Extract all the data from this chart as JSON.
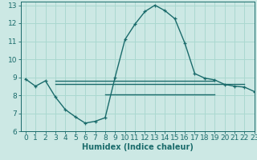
{
  "xlabel": "Humidex (Indice chaleur)",
  "background_color": "#cce8e4",
  "line_color": "#1a6b6b",
  "grid_color": "#aad8d0",
  "xlim": [
    -0.5,
    23
  ],
  "ylim": [
    6,
    13.2
  ],
  "xticks": [
    0,
    1,
    2,
    3,
    4,
    5,
    6,
    7,
    8,
    9,
    10,
    11,
    12,
    13,
    14,
    15,
    16,
    17,
    18,
    19,
    20,
    21,
    22,
    23
  ],
  "yticks": [
    6,
    7,
    8,
    9,
    10,
    11,
    12,
    13
  ],
  "main_curve_x": [
    0,
    1,
    2,
    3,
    4,
    5,
    6,
    7,
    8,
    9,
    10,
    11,
    12,
    13,
    14,
    15,
    16,
    17,
    18,
    19,
    20,
    21,
    22,
    23
  ],
  "main_curve_y": [
    8.9,
    8.5,
    8.8,
    7.9,
    7.2,
    6.8,
    6.45,
    6.55,
    6.75,
    9.0,
    11.1,
    11.95,
    12.65,
    13.0,
    12.7,
    12.25,
    10.9,
    9.2,
    8.95,
    8.85,
    8.6,
    8.5,
    8.45,
    8.2
  ],
  "flat_line1_x": [
    3,
    19
  ],
  "flat_line1_y": [
    8.78,
    8.78
  ],
  "flat_line2_x": [
    8,
    19
  ],
  "flat_line2_y": [
    8.05,
    8.05
  ],
  "flat_line3_x": [
    3,
    22
  ],
  "flat_line3_y": [
    8.62,
    8.62
  ],
  "label_fontsize": 7,
  "tick_fontsize": 6.5
}
